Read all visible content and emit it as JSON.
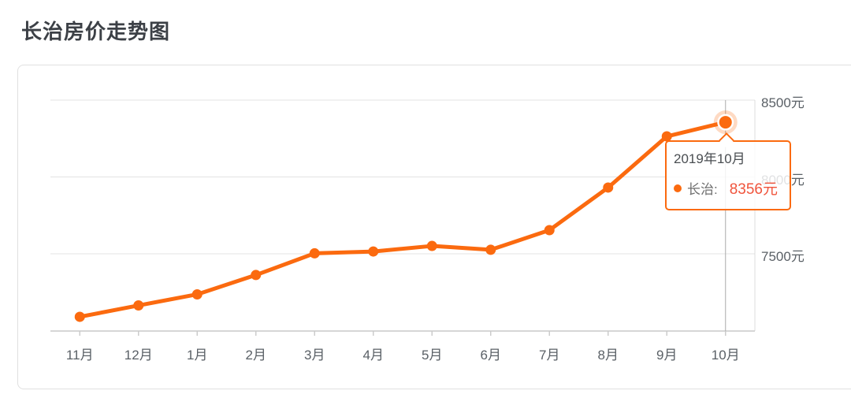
{
  "page_title": "长治房价走势图",
  "colors": {
    "line": "#fb6a0f",
    "halo": "rgba(251,106,15,0.25)",
    "grid": "#e3e3e3",
    "axis": "#c9c9c9",
    "right_axis": "#dcdcdc",
    "pointer": "#ababab",
    "axis_label": "#5a6066",
    "title": "#3c4046",
    "tooltip_border": "#fb6a0f",
    "tooltip_title": "#4a4e52",
    "tooltip_label": "#6e6e6e",
    "tooltip_value": "#f0543c"
  },
  "chart_data": {
    "type": "line",
    "title": "长治房价走势图",
    "unit": "元",
    "categories": [
      "11月",
      "12月",
      "1月",
      "2月",
      "3月",
      "4月",
      "5月",
      "6月",
      "7月",
      "8月",
      "9月",
      "10月"
    ],
    "series": [
      {
        "name": "长治",
        "values": [
          7090,
          7164,
          7236,
          7362,
          7503,
          7515,
          7551,
          7526,
          7654,
          7931,
          8264,
          8356
        ]
      }
    ],
    "y_ticks": [
      {
        "value": 7500,
        "label": "7500元"
      },
      {
        "value": 8000,
        "label": "8000元"
      },
      {
        "value": 8500,
        "label": "8500元"
      }
    ],
    "ylim": [
      7000,
      8500
    ],
    "grid": true,
    "y_axis_position": "right",
    "legend": "none",
    "highlight": {
      "index": 11,
      "category": "10月",
      "value": 8356
    }
  },
  "tooltip": {
    "title": "2019年10月",
    "series_label": "长治:",
    "value_text": "8356元"
  }
}
